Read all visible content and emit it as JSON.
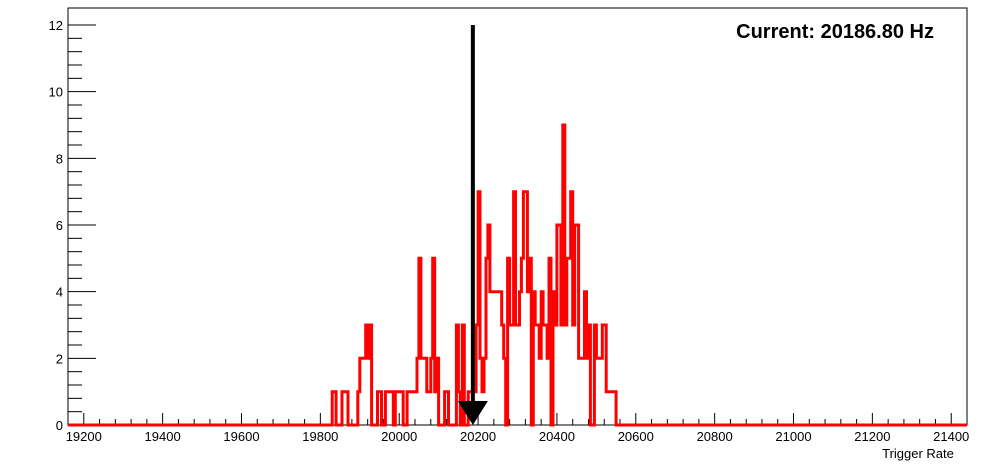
{
  "chart_data": {
    "type": "histogram",
    "title": "",
    "xlabel": "Trigger Rate",
    "ylabel": "",
    "xlim": [
      19160,
      21440
    ],
    "ylim": [
      0,
      12
    ],
    "x_ticks": [
      19200,
      19400,
      19600,
      19800,
      20000,
      20200,
      20400,
      20600,
      20800,
      21000,
      21200,
      21400
    ],
    "y_ticks": [
      0,
      2,
      4,
      6,
      8,
      10,
      12
    ],
    "grid": false,
    "legend": "none",
    "colors": {
      "series": "#ff0000",
      "marker": "#000000",
      "axes": "#000000"
    },
    "series": [
      {
        "bins": [
          [
            19160,
            0
          ],
          [
            19830,
            1
          ],
          [
            19840,
            0
          ],
          [
            19855,
            1
          ],
          [
            19870,
            0
          ],
          [
            19895,
            1
          ],
          [
            19900,
            2
          ],
          [
            19915,
            3
          ],
          [
            19920,
            2
          ],
          [
            19925,
            3
          ],
          [
            19930,
            0
          ],
          [
            19945,
            1
          ],
          [
            19955,
            0
          ],
          [
            19965,
            1
          ],
          [
            19985,
            0
          ],
          [
            19990,
            1
          ],
          [
            20010,
            0
          ],
          [
            20020,
            1
          ],
          [
            20045,
            2
          ],
          [
            20050,
            5
          ],
          [
            20055,
            2
          ],
          [
            20070,
            1
          ],
          [
            20080,
            2
          ],
          [
            20085,
            5
          ],
          [
            20090,
            1
          ],
          [
            20095,
            2
          ],
          [
            20100,
            0
          ],
          [
            20115,
            1
          ],
          [
            20125,
            0
          ],
          [
            20145,
            3
          ],
          [
            20150,
            1
          ],
          [
            20155,
            0
          ],
          [
            20160,
            3
          ],
          [
            20165,
            0
          ],
          [
            20175,
            1
          ],
          [
            20195,
            3
          ],
          [
            20200,
            7
          ],
          [
            20205,
            2
          ],
          [
            20210,
            1
          ],
          [
            20215,
            2
          ],
          [
            20220,
            5
          ],
          [
            20225,
            6
          ],
          [
            20230,
            4
          ],
          [
            20260,
            3
          ],
          [
            20265,
            2
          ],
          [
            20270,
            0
          ],
          [
            20275,
            5
          ],
          [
            20280,
            3
          ],
          [
            20290,
            7
          ],
          [
            20295,
            3
          ],
          [
            20305,
            4
          ],
          [
            20310,
            5
          ],
          [
            20315,
            7
          ],
          [
            20325,
            4
          ],
          [
            20330,
            5
          ],
          [
            20335,
            0
          ],
          [
            20340,
            4
          ],
          [
            20345,
            3
          ],
          [
            20355,
            2
          ],
          [
            20360,
            4
          ],
          [
            20365,
            3
          ],
          [
            20375,
            2
          ],
          [
            20380,
            5
          ],
          [
            20385,
            0
          ],
          [
            20390,
            4
          ],
          [
            20395,
            3
          ],
          [
            20400,
            6
          ],
          [
            20410,
            3
          ],
          [
            20415,
            9
          ],
          [
            20420,
            3
          ],
          [
            20425,
            5
          ],
          [
            20435,
            7
          ],
          [
            20440,
            3
          ],
          [
            20445,
            6
          ],
          [
            20455,
            2
          ],
          [
            20470,
            4
          ],
          [
            20475,
            2
          ],
          [
            20480,
            3
          ],
          [
            20485,
            0
          ],
          [
            20495,
            3
          ],
          [
            20500,
            2
          ],
          [
            20515,
            3
          ],
          [
            20525,
            1
          ],
          [
            20550,
            0
          ]
        ]
      }
    ],
    "marker": {
      "type": "arrow",
      "x": 20186.8,
      "y_from": 12,
      "y_to": 0
    },
    "annotation": "Current: 20186.80 Hz"
  }
}
